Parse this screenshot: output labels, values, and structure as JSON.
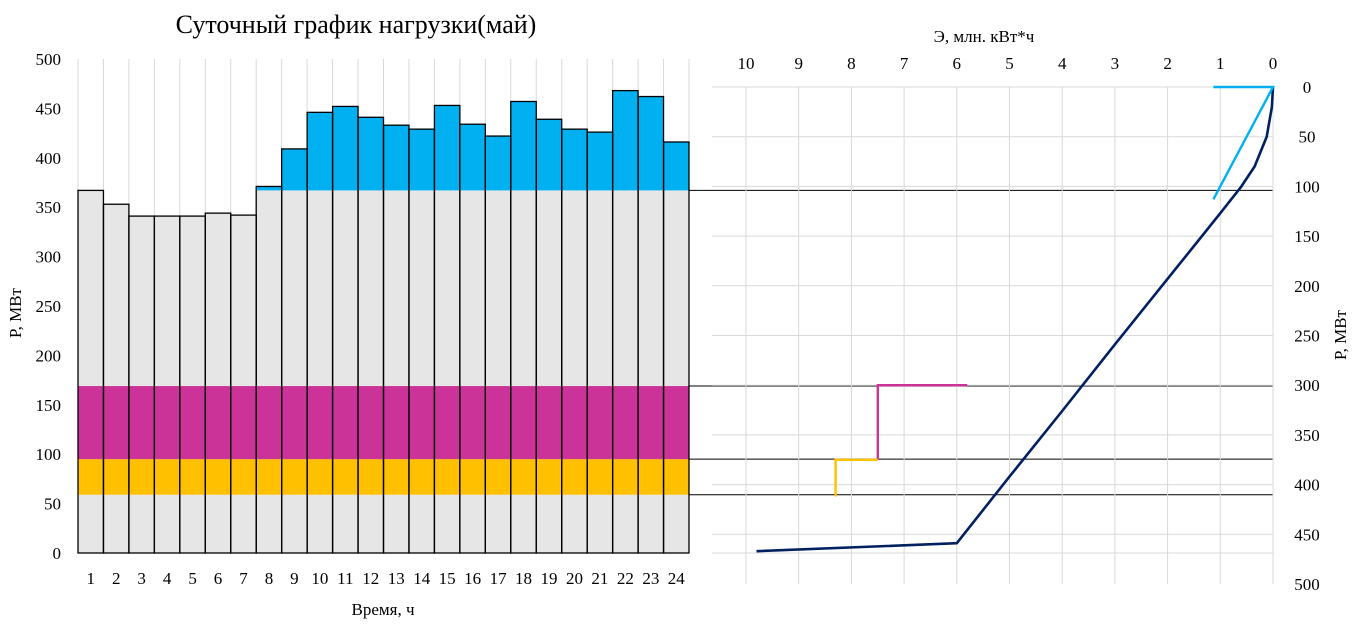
{
  "chart_data": [
    {
      "type": "bar",
      "title": "Суточный график нагрузки(май)",
      "xlabel": "Время, ч",
      "ylabel": "P, МВт",
      "ylim": [
        0,
        500
      ],
      "yticks": [
        0,
        50,
        100,
        150,
        200,
        250,
        300,
        350,
        400,
        450,
        500
      ],
      "categories": [
        "1",
        "2",
        "3",
        "4",
        "5",
        "6",
        "7",
        "8",
        "9",
        "10",
        "11",
        "12",
        "13",
        "14",
        "15",
        "16",
        "17",
        "18",
        "19",
        "20",
        "21",
        "22",
        "23",
        "24"
      ],
      "values": [
        367,
        353,
        341,
        341,
        341,
        344,
        342,
        371,
        409,
        446,
        452,
        441,
        433,
        429,
        453,
        434,
        422,
        457,
        439,
        429,
        426,
        468,
        462,
        416
      ],
      "grid": "vertical",
      "bands": [
        {
          "name": "base",
          "from": 0,
          "to": 59,
          "color": "#e6e6e6"
        },
        {
          "name": "yellow",
          "from": 59,
          "to": 95,
          "color": "#ffc000"
        },
        {
          "name": "magenta",
          "from": 95,
          "to": 169,
          "color": "#cc3399"
        },
        {
          "name": "middle",
          "from": 169,
          "to": 367,
          "color": "#e6e6e6"
        },
        {
          "name": "peak",
          "from": 367,
          "to": 500,
          "color": "#00b0f0"
        }
      ]
    },
    {
      "type": "line",
      "xlabel": "Э,  млн. кВт*ч",
      "ylabel": "P, МВт",
      "xlim": [
        10,
        0
      ],
      "ylim": [
        0,
        500
      ],
      "xticks": [
        10,
        9,
        8,
        7,
        6,
        5,
        4,
        3,
        2,
        1,
        0
      ],
      "yticks": [
        0,
        50,
        100,
        150,
        200,
        250,
        300,
        350,
        400,
        450,
        500
      ],
      "y_reversed": true,
      "grid": "both",
      "series": [
        {
          "color": "#002060",
          "points": [
            [
              0,
              0
            ],
            [
              0.02,
              20
            ],
            [
              0.12,
              50
            ],
            [
              0.35,
              80
            ],
            [
              0.6,
              100
            ],
            [
              1.0,
              127
            ],
            [
              1.5,
              160
            ],
            [
              2.0,
              193
            ],
            [
              3.0,
              259
            ],
            [
              4.0,
              326
            ],
            [
              5.0,
              392
            ],
            [
              6.0,
              459
            ],
            [
              9.8,
              467
            ]
          ]
        }
      ],
      "markers": [
        {
          "color": "#00b0f0",
          "points": [
            [
              1.13,
              0
            ],
            [
              0,
              0
            ],
            [
              1.13,
              113
            ]
          ]
        },
        {
          "color": "#cc3399",
          "points": [
            [
              7.5,
              375
            ],
            [
              7.5,
              300
            ],
            [
              5.8,
              300
            ]
          ]
        },
        {
          "color": "#ffc000",
          "points": [
            [
              8.3,
              412
            ],
            [
              8.3,
              375
            ],
            [
              7.5,
              375
            ]
          ]
        }
      ]
    }
  ]
}
